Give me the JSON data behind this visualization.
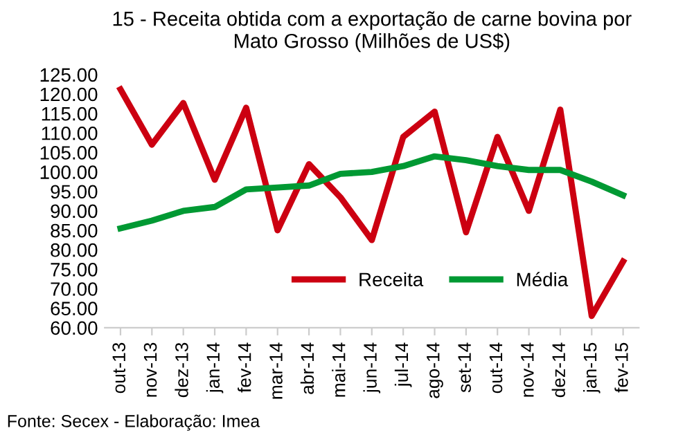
{
  "chart_data": {
    "type": "line",
    "title": "15 - Receita obtida com a exportação de carne bovina por\nMato Grosso (Milhões de US$)",
    "categories": [
      "out-13",
      "nov-13",
      "dez-13",
      "jan-14",
      "fev-14",
      "mar-14",
      "abr-14",
      "mai-14",
      "jun-14",
      "jul-14",
      "ago-14",
      "set-14",
      "out-14",
      "nov-14",
      "dez-14",
      "jan-15",
      "fev-15"
    ],
    "series": [
      {
        "name": "Receita",
        "color": "#cc0011",
        "values": [
          121.2,
          107,
          117.7,
          98,
          116.5,
          85,
          102,
          93.5,
          82.5,
          109,
          115.5,
          84.5,
          109,
          90,
          116,
          63,
          77
        ]
      },
      {
        "name": "Média",
        "color": "#009933",
        "values": [
          85.5,
          87.5,
          90,
          91,
          95.5,
          96,
          96.5,
          99.5,
          100,
          101.5,
          104,
          103,
          101.5,
          100.5,
          100.5,
          97.5,
          94
        ]
      }
    ],
    "ylim": [
      60,
      125
    ],
    "yticks": [
      {
        "value": 60,
        "label": "60.00"
      },
      {
        "value": 65,
        "label": "65.00"
      },
      {
        "value": 70,
        "label": "70.00"
      },
      {
        "value": 75,
        "label": "75.00"
      },
      {
        "value": 80,
        "label": "80.00"
      },
      {
        "value": 85,
        "label": "85.00"
      },
      {
        "value": 90,
        "label": "90.00"
      },
      {
        "value": 95,
        "label": "95.00"
      },
      {
        "value": 100,
        "label": "100.00"
      },
      {
        "value": 105,
        "label": "105.00"
      },
      {
        "value": 110,
        "label": "110.00"
      },
      {
        "value": 115,
        "label": "115.00"
      },
      {
        "value": 120,
        "label": "120.00"
      },
      {
        "value": 125,
        "label": "125.00"
      }
    ],
    "grid": false,
    "legend": "bottom right",
    "marker": "none",
    "line_style": "solid",
    "annotations": [
      "Fonte: Secex - Elaboração: Imea"
    ]
  }
}
